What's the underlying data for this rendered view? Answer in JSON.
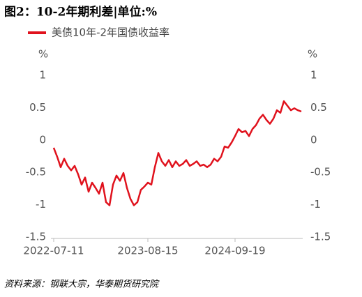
{
  "chart_data": {
    "type": "line",
    "title": "图2：10-2年期利差|单位:%",
    "y_unit": "%",
    "y2_unit": "%",
    "source": "资料来源：钢联大宗，华泰期货研究院",
    "categories": [
      "2022-07-11",
      null,
      null,
      null,
      null,
      null,
      null,
      null,
      null,
      null,
      null,
      null,
      null,
      null,
      null,
      null,
      null,
      null,
      null,
      null,
      null,
      null,
      null,
      null,
      null,
      null,
      null,
      "2023-08-15",
      null,
      null,
      null,
      null,
      null,
      null,
      null,
      null,
      null,
      null,
      null,
      null,
      null,
      null,
      null,
      null,
      null,
      null,
      null,
      null,
      null,
      null,
      null,
      null,
      "2024-09-19",
      null,
      null,
      null,
      null,
      null,
      null,
      null,
      null,
      null,
      null,
      null,
      null,
      null,
      null,
      null,
      null,
      null,
      null,
      null
    ],
    "series": [
      {
        "name": "美债10年-2年国债收益率",
        "color": "#e0121d",
        "values": [
          -0.12,
          -0.26,
          -0.42,
          -0.29,
          -0.4,
          -0.47,
          -0.4,
          -0.53,
          -0.69,
          -0.58,
          -0.8,
          -0.66,
          -0.74,
          -0.83,
          -0.66,
          -0.96,
          -1.01,
          -0.69,
          -0.55,
          -0.63,
          -0.51,
          -0.74,
          -0.91,
          -1.01,
          -0.96,
          -0.77,
          -0.72,
          -0.66,
          -0.69,
          -0.42,
          -0.2,
          -0.33,
          -0.4,
          -0.31,
          -0.42,
          -0.33,
          -0.4,
          -0.37,
          -0.31,
          -0.4,
          -0.37,
          -0.33,
          -0.4,
          -0.38,
          -0.42,
          -0.38,
          -0.29,
          -0.33,
          -0.26,
          -0.1,
          -0.12,
          -0.04,
          0.06,
          0.17,
          0.12,
          0.14,
          0.06,
          0.17,
          0.23,
          0.33,
          0.39,
          0.31,
          0.25,
          0.33,
          0.46,
          0.42,
          0.6,
          0.53,
          0.46,
          0.49,
          0.46,
          0.44
        ]
      }
    ],
    "ylim": [
      -1.5,
      1
    ],
    "yticks": [
      1,
      0.5,
      0,
      -0.5,
      -1,
      -1.5
    ],
    "y2lim": [
      -1.5,
      1
    ],
    "y2ticks": [
      1,
      0.5,
      0,
      -0.5,
      -1,
      -1.5
    ],
    "grid": false
  }
}
